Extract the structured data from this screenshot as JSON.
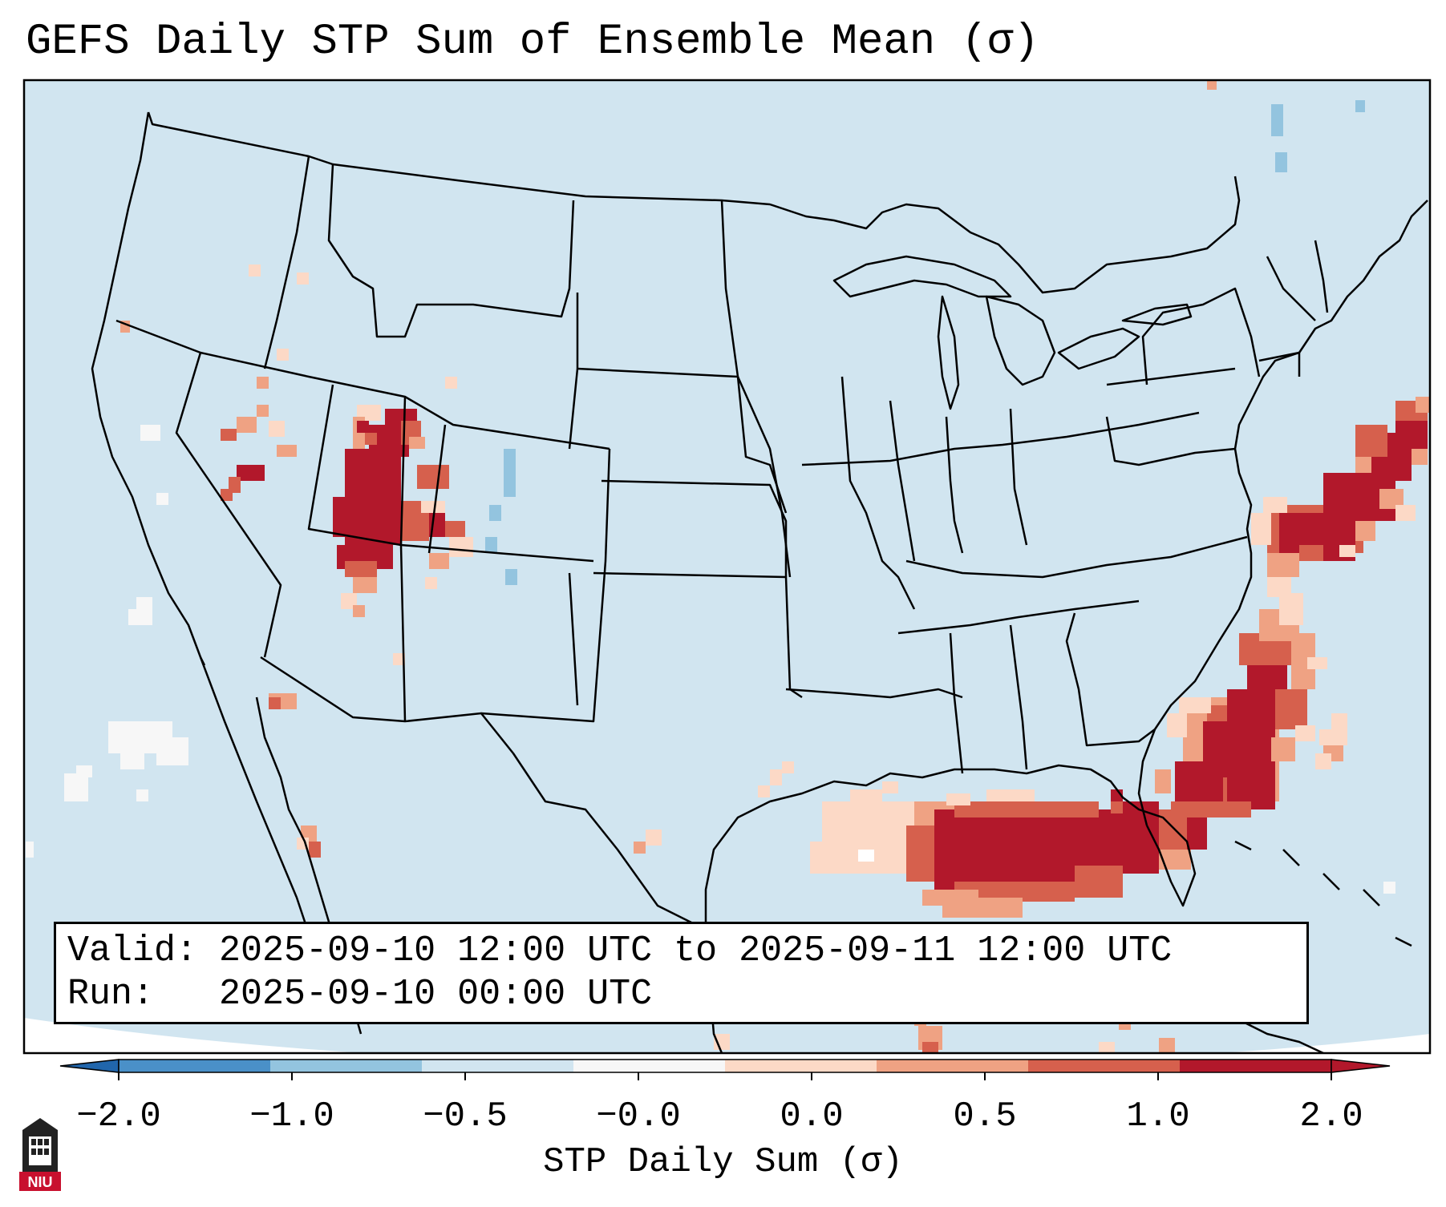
{
  "title": "GEFS Daily STP Sum of Ensemble Mean (σ)",
  "info": {
    "valid_label": "Valid:",
    "valid_value": "2025-09-10 12:00 UTC to 2025-09-11 12:00 UTC",
    "run_label": "Run:",
    "run_value": "2025-09-10 00:00 UTC"
  },
  "colorbar": {
    "label": "STP Daily Sum (σ)",
    "ticks": [
      "−2.0",
      "−1.0",
      "−0.5",
      "−0.0",
      "0.0",
      "0.5",
      "1.0",
      "2.0"
    ],
    "bin_colors": [
      "#4a90c8",
      "#93c4df",
      "#d1e5f0",
      "#f7f7f7",
      "#fcd9c6",
      "#efa283",
      "#d6604d",
      "#b2182b"
    ],
    "extend_low_color": "#2166ac",
    "extend_high_color": "#b2182b"
  },
  "map": {
    "background_color": "#d1e5f0",
    "land_outline_color": "#000000",
    "regions": [
      "Utah / Arizona high values",
      "Nevada scattered",
      "Gulf of Mexico band",
      "Florida / Southeast coast band",
      "Western Atlantic band"
    ]
  },
  "logo": {
    "text": "NIU"
  }
}
